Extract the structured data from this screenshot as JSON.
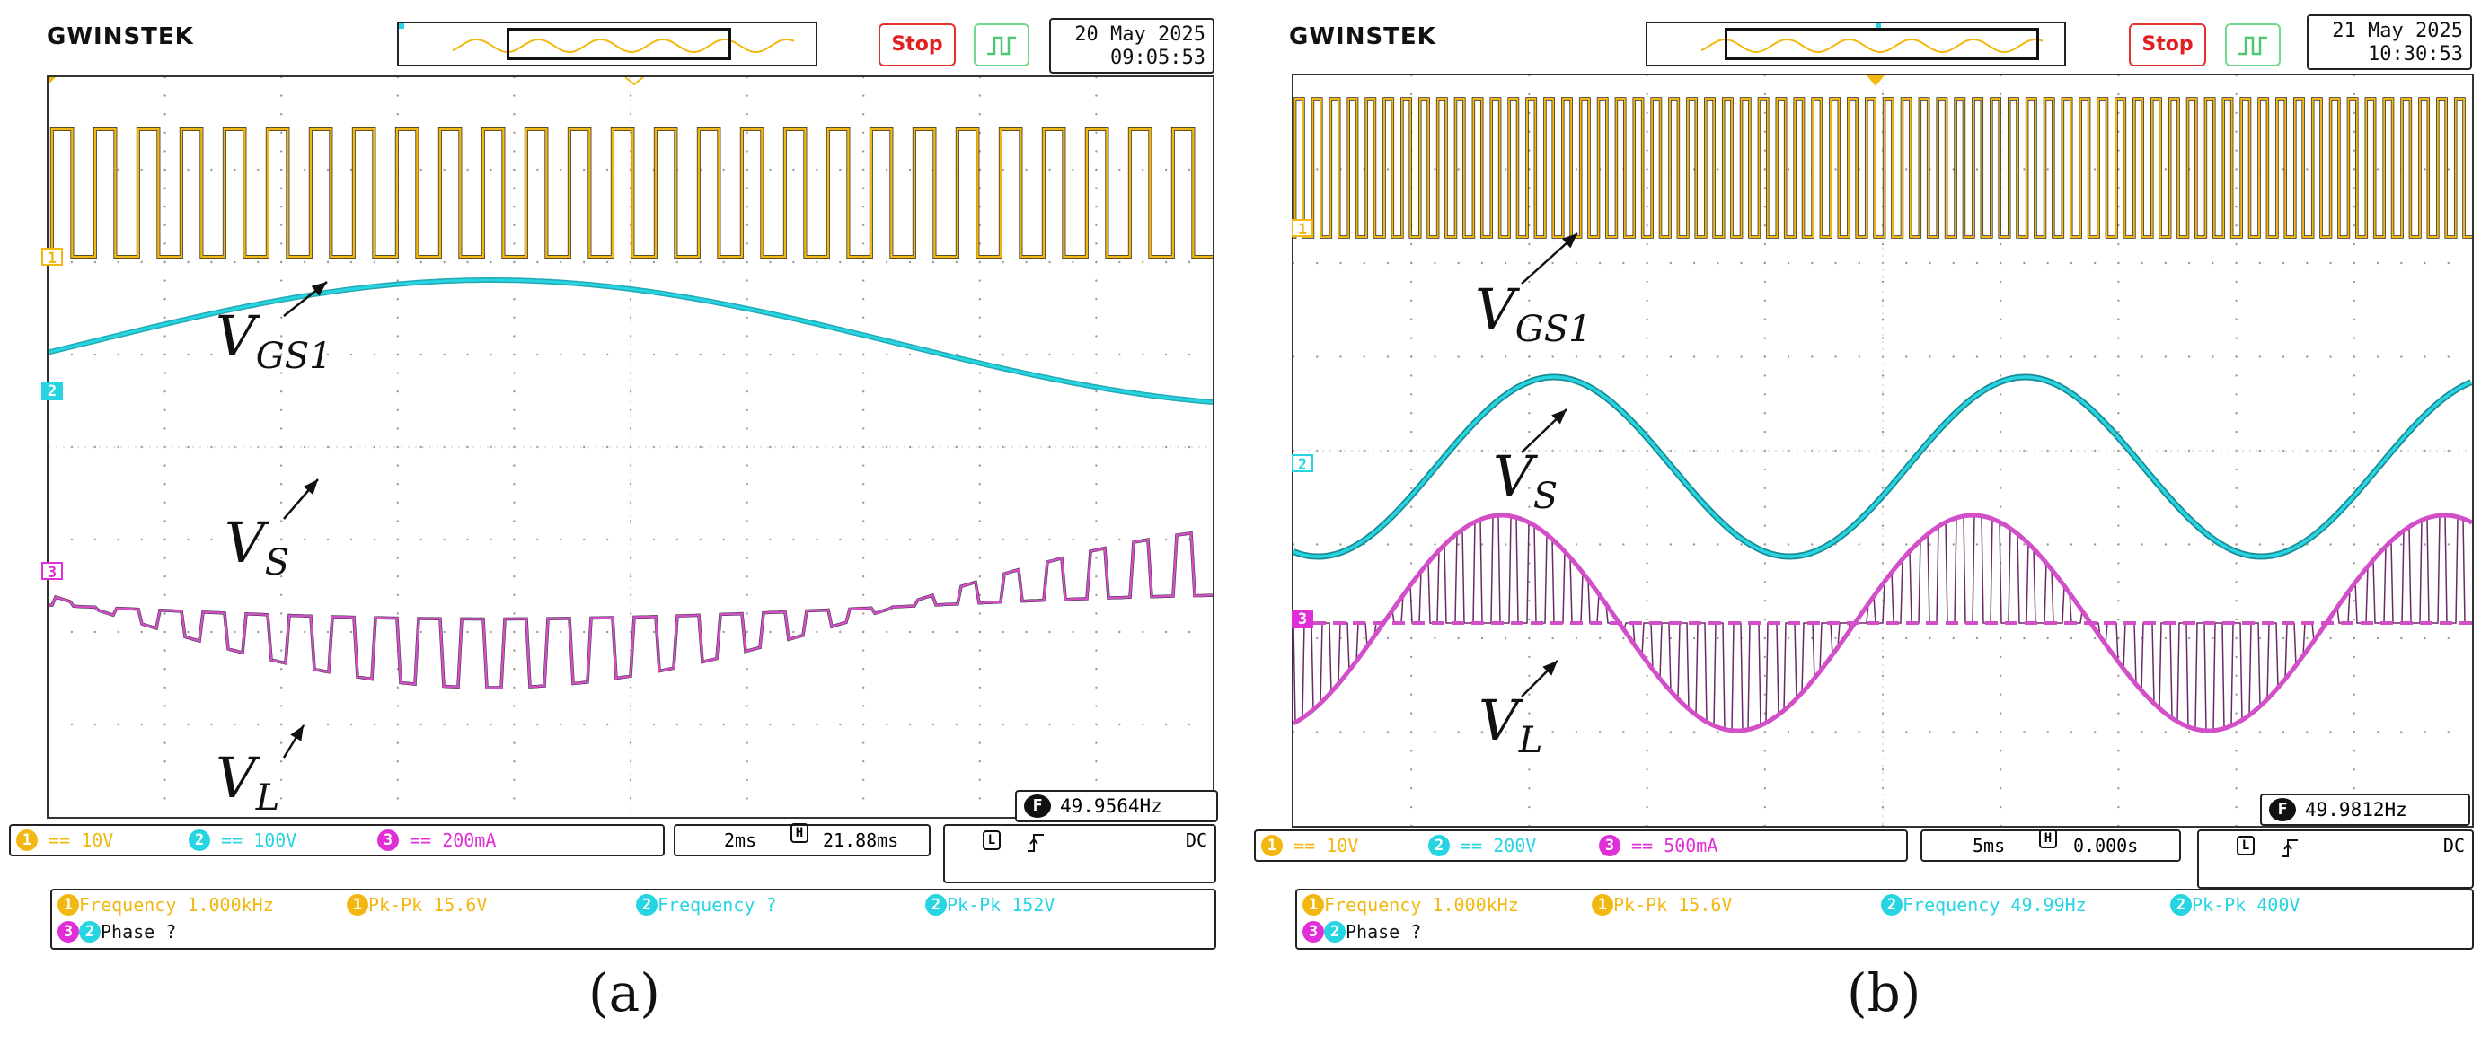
{
  "scope_a": {
    "brand": "GWINSTEK",
    "stop_label": "Stop",
    "trigger_icon": "trigger-mode-icon",
    "date": "20 May 2025",
    "time": "09:05:53",
    "channels": [
      {
        "num": "1",
        "coupling": "DC",
        "scale": "10V",
        "color": "#f2b811"
      },
      {
        "num": "2",
        "coupling": "DC",
        "scale": "100V",
        "color": "#27d4e1"
      },
      {
        "num": "3",
        "coupling": "DC",
        "scale": "200mA",
        "color": "#e02fd6"
      }
    ],
    "timebase": "2ms",
    "h_position": "21.88ms",
    "freq_counter": "49.9564Hz",
    "trigger": {
      "source": "L",
      "slope": "rising",
      "coupling": "DC"
    },
    "measurements": [
      {
        "ch": "1",
        "text": "Frequency 1.000kHz"
      },
      {
        "ch": "1",
        "text": "Pk-Pk 15.6V"
      },
      {
        "ch": "2",
        "text": "Frequency ?"
      },
      {
        "ch": "2",
        "text": "Pk-Pk 152V"
      },
      {
        "ch": "3-2",
        "text": "Phase ?"
      }
    ],
    "labels": {
      "vgs": "V",
      "vgs_sub": "GS1",
      "vs": "V",
      "vs_sub": "S",
      "vl": "V",
      "vl_sub": "L"
    },
    "caption": "(a)"
  },
  "scope_b": {
    "brand": "GWINSTEK",
    "stop_label": "Stop",
    "trigger_icon": "trigger-mode-icon",
    "date": "21 May 2025",
    "time": "10:30:53",
    "channels": [
      {
        "num": "1",
        "coupling": "DC",
        "scale": "10V",
        "color": "#f2b811"
      },
      {
        "num": "2",
        "coupling": "DC",
        "scale": "200V",
        "color": "#27d4e1"
      },
      {
        "num": "3",
        "coupling": "DC",
        "scale": "500mA",
        "color": "#e02fd6"
      }
    ],
    "timebase": "5ms",
    "h_position": "0.000s",
    "freq_counter": "49.9812Hz",
    "trigger": {
      "source": "L",
      "slope": "rising",
      "coupling": "DC"
    },
    "measurements": [
      {
        "ch": "1",
        "text": "Frequency 1.000kHz"
      },
      {
        "ch": "1",
        "text": "Pk-Pk 15.6V"
      },
      {
        "ch": "2",
        "text": "Frequency 49.99Hz"
      },
      {
        "ch": "2",
        "text": "Pk-Pk 400V"
      },
      {
        "ch": "3-2",
        "text": "Phase ?"
      }
    ],
    "labels": {
      "vgs": "V",
      "vgs_sub": "GS1",
      "vs": "V",
      "vs_sub": "S",
      "vl": "V",
      "vl_sub": "L"
    },
    "caption": "(b)"
  },
  "ui_strings": {
    "coupling_glyph": "==",
    "f_glyph": "F",
    "h_glyph": "H",
    "ch1_marker": "1",
    "ch2_marker": "2",
    "ch3_marker": "3"
  }
}
